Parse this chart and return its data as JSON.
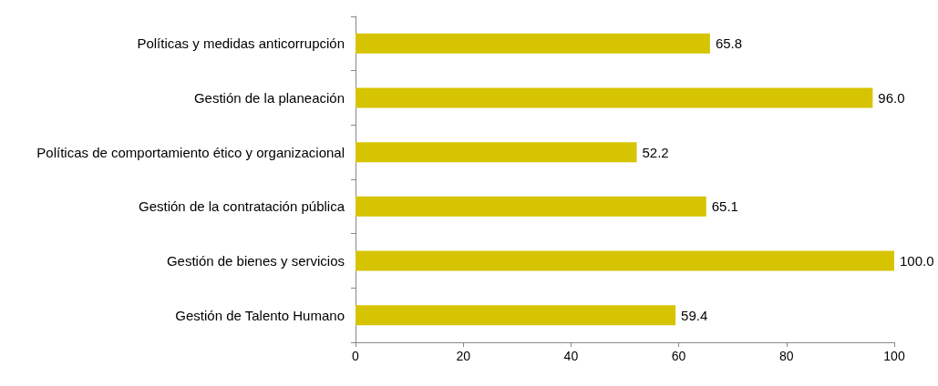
{
  "chart_data": {
    "type": "bar",
    "orientation": "horizontal",
    "categories": [
      "Políticas y medidas anticorrupción",
      "Gestión de la planeación",
      "Políticas de comportamiento ético y organizacional",
      "Gestión de la contratación pública",
      "Gestión de bienes y servicios",
      "Gestión de Talento Humano"
    ],
    "values": [
      65.8,
      96.0,
      52.2,
      65.1,
      100.0,
      59.4
    ],
    "value_labels": [
      "65.8",
      "96.0",
      "52.2",
      "65.1",
      "100.0",
      "59.4"
    ],
    "color": "#d6c400",
    "xlim": [
      0,
      100
    ],
    "xticks": [
      0,
      20,
      40,
      60,
      80,
      100
    ],
    "grid": false
  }
}
